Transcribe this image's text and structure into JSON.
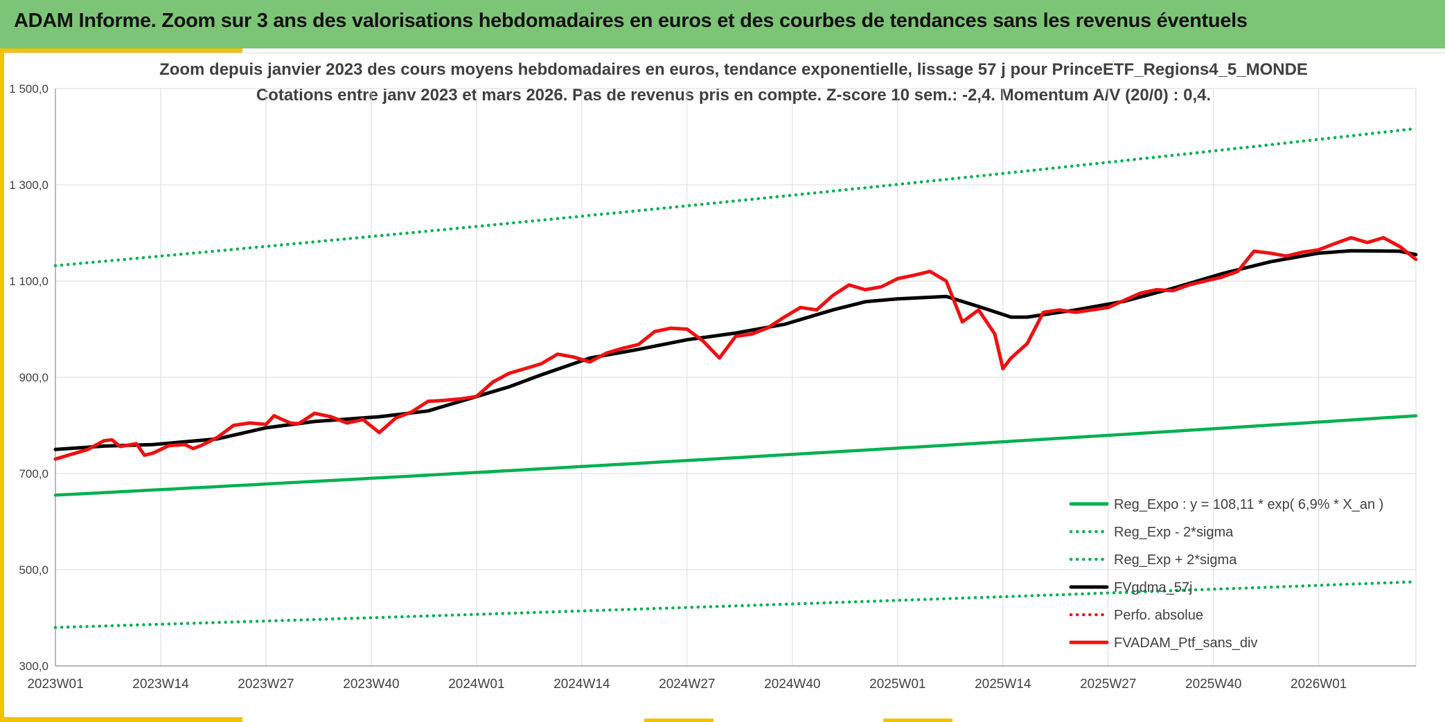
{
  "header": {
    "title": "ADAM Informe. Zoom sur 3 ans des valorisations hebdomadaires en euros et des courbes de tendances sans les revenus éventuels"
  },
  "colors": {
    "header_bg": "#7cc576",
    "accent": "#f2c200",
    "reg_green": "#00b050",
    "smooth_black": "#000000",
    "price_red": "#ee1111",
    "grid": "#d9d9d9",
    "text": "#404040"
  },
  "chart_data": {
    "type": "line",
    "title_line1": "Zoom depuis janvier 2023 des cours moyens hebdomadaires en euros, tendance exponentielle, lissage 57 j pour PrinceETF_Regions4_5_MONDE",
    "title_line2": "Cotations entre janv 2023 et mars 2026. Pas de revenus pris en compte. Z-score 10 sem.: -2,4. Momentum A/V (20/0) : 0,4.",
    "ylim": [
      300,
      1500
    ],
    "yticks": [
      "1 500,0",
      "1 300,0",
      "1 100,0",
      "900,0",
      "700,0",
      "500,0",
      "300,0"
    ],
    "ytick_values": [
      1500,
      1300,
      1100,
      900,
      700,
      500,
      300
    ],
    "xlim": [
      0,
      168
    ],
    "xticks": [
      "2023W01",
      "2023W14",
      "2023W27",
      "2023W40",
      "2024W01",
      "2024W14",
      "2024W27",
      "2024W40",
      "2025W01",
      "2025W14",
      "2025W27",
      "2025W40",
      "2026W01"
    ],
    "xtick_positions": [
      0,
      13,
      26,
      39,
      52,
      65,
      78,
      91,
      104,
      117,
      130,
      143,
      156
    ],
    "grid": true,
    "legend_position": "bottom-right",
    "legend": [
      {
        "label": "Reg_Expo : y = 108,11 * exp( 6,9% *  X_an )",
        "style": "solid",
        "color": "#00b050"
      },
      {
        "label": "Reg_Exp - 2*sigma",
        "style": "dotted",
        "color": "#00b050"
      },
      {
        "label": "Reg_Exp + 2*sigma",
        "style": "dotted",
        "color": "#00b050"
      },
      {
        "label": "FVgdma_57j",
        "style": "solid",
        "color": "#000000"
      },
      {
        "label": "Perfo. absolue",
        "style": "dotted",
        "color": "#ee1111"
      },
      {
        "label": "FVADAM_Ptf_sans_div",
        "style": "solid",
        "color": "#ee1111"
      }
    ],
    "series": [
      {
        "name": "Reg_Expo",
        "style": "solid",
        "color": "#00b050",
        "x": [
          0,
          168
        ],
        "y": [
          655,
          820
        ],
        "curve": "exp"
      },
      {
        "name": "Reg_Exp - 2*sigma",
        "style": "dotted",
        "color": "#00b050",
        "x": [
          0,
          168
        ],
        "y": [
          380,
          475
        ],
        "curve": "exp"
      },
      {
        "name": "Reg_Exp + 2*sigma",
        "style": "dotted",
        "color": "#00b050",
        "x": [
          0,
          168
        ],
        "y": [
          1132,
          1417
        ],
        "curve": "exp"
      },
      {
        "name": "FVgdma_57j",
        "style": "solid",
        "color": "#000000",
        "x": [
          0,
          6,
          12,
          20,
          26,
          32,
          40,
          46,
          52,
          56,
          60,
          66,
          72,
          78,
          84,
          90,
          96,
          100,
          104,
          110,
          114,
          118,
          120,
          126,
          132,
          138,
          144,
          150,
          156,
          160,
          166,
          168
        ],
        "y": [
          750,
          757,
          760,
          772,
          795,
          808,
          818,
          830,
          860,
          880,
          905,
          940,
          958,
          978,
          992,
          1010,
          1040,
          1057,
          1063,
          1068,
          1047,
          1025,
          1025,
          1040,
          1058,
          1085,
          1115,
          1140,
          1158,
          1163,
          1162,
          1155
        ]
      },
      {
        "name": "FVADAM_Ptf_sans_div",
        "style": "solid",
        "color": "#ee1111",
        "x": [
          0,
          2,
          4,
          6,
          7,
          8,
          10,
          11,
          12,
          13,
          14,
          16,
          17,
          18,
          20,
          22,
          24,
          26,
          27,
          29,
          30,
          32,
          34,
          36,
          38,
          40,
          42,
          44,
          46,
          48,
          50,
          52,
          54,
          56,
          58,
          60,
          62,
          64,
          66,
          68,
          70,
          72,
          74,
          76,
          78,
          80,
          82,
          84,
          86,
          88,
          90,
          92,
          94,
          96,
          98,
          100,
          102,
          104,
          106,
          108,
          110,
          112,
          114,
          116,
          117,
          118,
          120,
          122,
          124,
          126,
          128,
          130,
          132,
          134,
          136,
          138,
          140,
          142,
          144,
          146,
          148,
          150,
          152,
          154,
          156,
          158,
          160,
          162,
          164,
          166,
          168
        ],
        "y": [
          730,
          740,
          750,
          768,
          770,
          756,
          762,
          738,
          742,
          750,
          758,
          760,
          752,
          758,
          775,
          800,
          805,
          802,
          820,
          805,
          803,
          825,
          818,
          805,
          812,
          785,
          815,
          828,
          850,
          852,
          855,
          860,
          890,
          908,
          918,
          928,
          948,
          942,
          932,
          950,
          960,
          968,
          995,
          1002,
          1000,
          975,
          940,
          985,
          990,
          1003,
          1025,
          1045,
          1040,
          1070,
          1092,
          1082,
          1088,
          1105,
          1112,
          1120,
          1100,
          1015,
          1040,
          990,
          918,
          940,
          970,
          1035,
          1040,
          1035,
          1040,
          1045,
          1060,
          1075,
          1082,
          1080,
          1092,
          1100,
          1108,
          1120,
          1162,
          1158,
          1152,
          1160,
          1165,
          1178,
          1190,
          1180,
          1190,
          1172,
          1145
        ]
      }
    ]
  }
}
